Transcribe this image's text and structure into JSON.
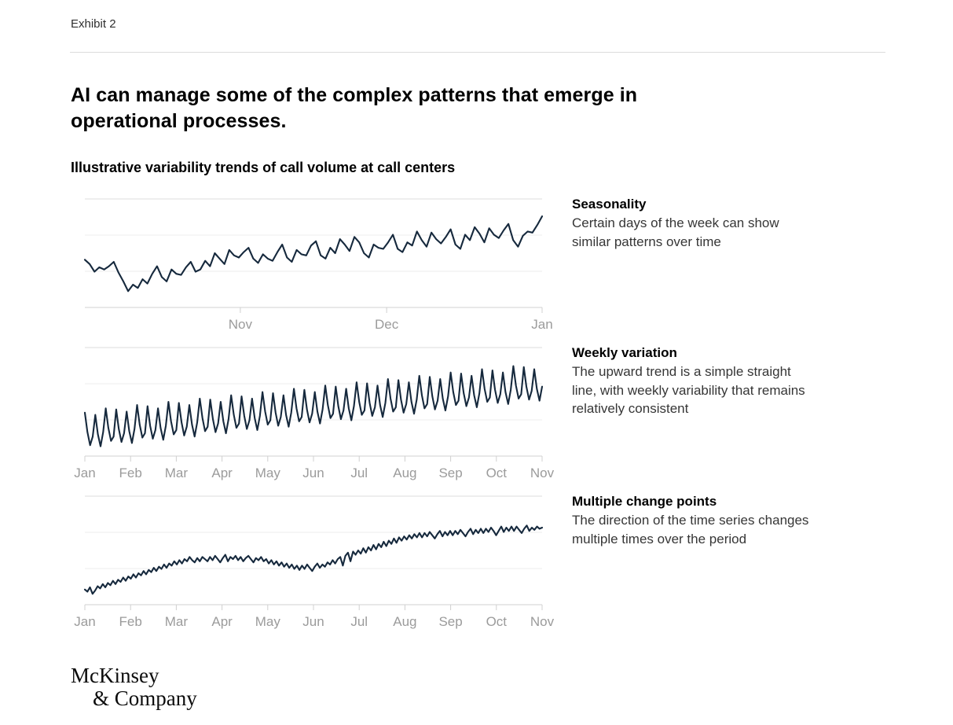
{
  "page": {
    "exhibit_label": "Exhibit 2",
    "title": "AI can manage some of the complex patterns that emerge in operational processes.",
    "subtitle": "Illustrative variability trends of call volume at call centers",
    "logo_line1": "McKinsey",
    "logo_line2": "& Company"
  },
  "colors": {
    "line": "#16293d",
    "grid_top": "#dcdcdc",
    "grid": "#ececec",
    "axis": "#d2d2d2",
    "tick": "#d0d0d0",
    "tick_label": "#9b9b9b"
  },
  "chart_data": [
    {
      "type": "line",
      "title": "Seasonality",
      "description": "Certain days of the week can show\nsimilar patterns over time",
      "xlabel": "",
      "ylabel": "",
      "x_ticks": [
        "Nov",
        "Dec",
        "Jan"
      ],
      "tick_positions": [
        0.34,
        0.66,
        1.0
      ],
      "ylim": [
        0,
        100
      ],
      "grid": "horizontal",
      "legend": "none",
      "values": [
        44,
        40,
        33,
        37,
        35,
        38,
        42,
        32,
        24,
        15,
        21,
        18,
        26,
        22,
        31,
        38,
        28,
        24,
        35,
        31,
        30,
        37,
        42,
        33,
        35,
        43,
        38,
        50,
        45,
        40,
        53,
        48,
        46,
        51,
        55,
        45,
        41,
        49,
        45,
        43,
        51,
        58,
        46,
        42,
        53,
        49,
        48,
        57,
        61,
        48,
        45,
        55,
        50,
        63,
        58,
        52,
        65,
        60,
        50,
        46,
        58,
        55,
        54,
        60,
        67,
        54,
        51,
        60,
        57,
        70,
        62,
        56,
        69,
        63,
        59,
        65,
        72,
        58,
        54,
        67,
        62,
        74,
        68,
        60,
        73,
        67,
        64,
        71,
        77,
        62,
        56,
        66,
        70,
        69,
        76,
        84
      ]
    },
    {
      "type": "line",
      "title": "Weekly variation",
      "description": "The upward trend is a simple straight\nline, with weekly variability that remains\nrelatively consistent",
      "xlabel": "",
      "ylabel": "",
      "x_ticks": [
        "Jan",
        "Feb",
        "Mar",
        "Apr",
        "May",
        "Jun",
        "Jul",
        "Aug",
        "Sep",
        "Oct",
        "Nov"
      ],
      "tick_positions": [
        0,
        0.1,
        0.2,
        0.3,
        0.4,
        0.5,
        0.6,
        0.7,
        0.8,
        0.9,
        1.0
      ],
      "ylim": [
        0,
        100
      ],
      "grid": "horizontal",
      "legend": "none",
      "values": [
        40,
        22,
        10,
        18,
        38,
        20,
        9,
        22,
        44,
        26,
        14,
        18,
        43,
        25,
        13,
        21,
        41,
        23,
        12,
        25,
        47,
        29,
        17,
        21,
        46,
        28,
        16,
        24,
        44,
        26,
        15,
        28,
        50,
        32,
        20,
        24,
        49,
        31,
        19,
        27,
        47,
        29,
        18,
        31,
        53,
        35,
        23,
        27,
        52,
        34,
        22,
        30,
        50,
        32,
        21,
        34,
        56,
        38,
        26,
        30,
        55,
        37,
        25,
        33,
        53,
        35,
        24,
        37,
        59,
        41,
        29,
        33,
        58,
        40,
        28,
        36,
        56,
        38,
        27,
        40,
        62,
        44,
        32,
        36,
        61,
        43,
        31,
        39,
        59,
        41,
        30,
        43,
        65,
        47,
        35,
        39,
        64,
        46,
        34,
        42,
        62,
        44,
        33,
        46,
        68,
        50,
        38,
        42,
        67,
        49,
        37,
        45,
        65,
        47,
        36,
        49,
        71,
        53,
        41,
        45,
        70,
        52,
        40,
        48,
        68,
        50,
        39,
        52,
        74,
        56,
        44,
        48,
        73,
        55,
        43,
        51,
        71,
        53,
        42,
        55,
        77,
        59,
        47,
        51,
        76,
        58,
        46,
        54,
        74,
        56,
        45,
        58,
        80,
        62,
        50,
        54,
        79,
        61,
        49,
        57,
        77,
        59,
        48,
        61,
        83,
        65,
        53,
        57,
        82,
        64,
        52,
        60,
        80,
        62,
        51,
        64
      ]
    },
    {
      "type": "line",
      "title": "Multiple change points",
      "description": "The direction of the time series changes\nmultiple times over the period",
      "xlabel": "",
      "ylabel": "",
      "x_ticks": [
        "Jan",
        "Feb",
        "Mar",
        "Apr",
        "May",
        "Jun",
        "Jul",
        "Aug",
        "Sep",
        "Oct",
        "Nov"
      ],
      "tick_positions": [
        0,
        0.1,
        0.2,
        0.3,
        0.4,
        0.5,
        0.6,
        0.7,
        0.8,
        0.9,
        1.0
      ],
      "ylim": [
        0,
        100
      ],
      "grid": "horizontal",
      "legend": "none",
      "values": [
        14,
        12,
        16,
        10,
        13,
        17,
        15,
        19,
        16,
        20,
        18,
        22,
        19,
        23,
        21,
        25,
        22,
        26,
        24,
        28,
        25,
        29,
        27,
        31,
        28,
        32,
        30,
        34,
        31,
        35,
        33,
        37,
        34,
        38,
        36,
        40,
        37,
        41,
        38,
        42,
        40,
        44,
        41,
        39,
        43,
        40,
        44,
        42,
        40,
        44,
        41,
        45,
        42,
        39,
        43,
        46,
        40,
        44,
        42,
        45,
        41,
        44,
        40,
        43,
        45,
        42,
        39,
        43,
        41,
        44,
        40,
        42,
        38,
        41,
        37,
        40,
        36,
        39,
        35,
        38,
        34,
        37,
        33,
        36,
        32,
        36,
        33,
        37,
        34,
        31,
        35,
        38,
        34,
        37,
        35,
        39,
        37,
        41,
        38,
        42,
        44,
        36,
        45,
        48,
        40,
        49,
        46,
        50,
        47,
        52,
        48,
        53,
        50,
        55,
        51,
        56,
        53,
        58,
        54,
        59,
        56,
        61,
        57,
        62,
        59,
        63,
        60,
        64,
        61,
        65,
        62,
        66,
        62,
        66,
        63,
        67,
        64,
        61,
        65,
        68,
        63,
        67,
        64,
        68,
        64,
        68,
        65,
        69,
        66,
        63,
        67,
        70,
        65,
        69,
        66,
        70,
        66,
        70,
        67,
        71,
        68,
        64,
        68,
        72,
        67,
        71,
        68,
        72,
        68,
        72,
        69,
        66,
        70,
        73,
        68,
        71,
        69,
        72,
        70,
        71
      ]
    }
  ]
}
